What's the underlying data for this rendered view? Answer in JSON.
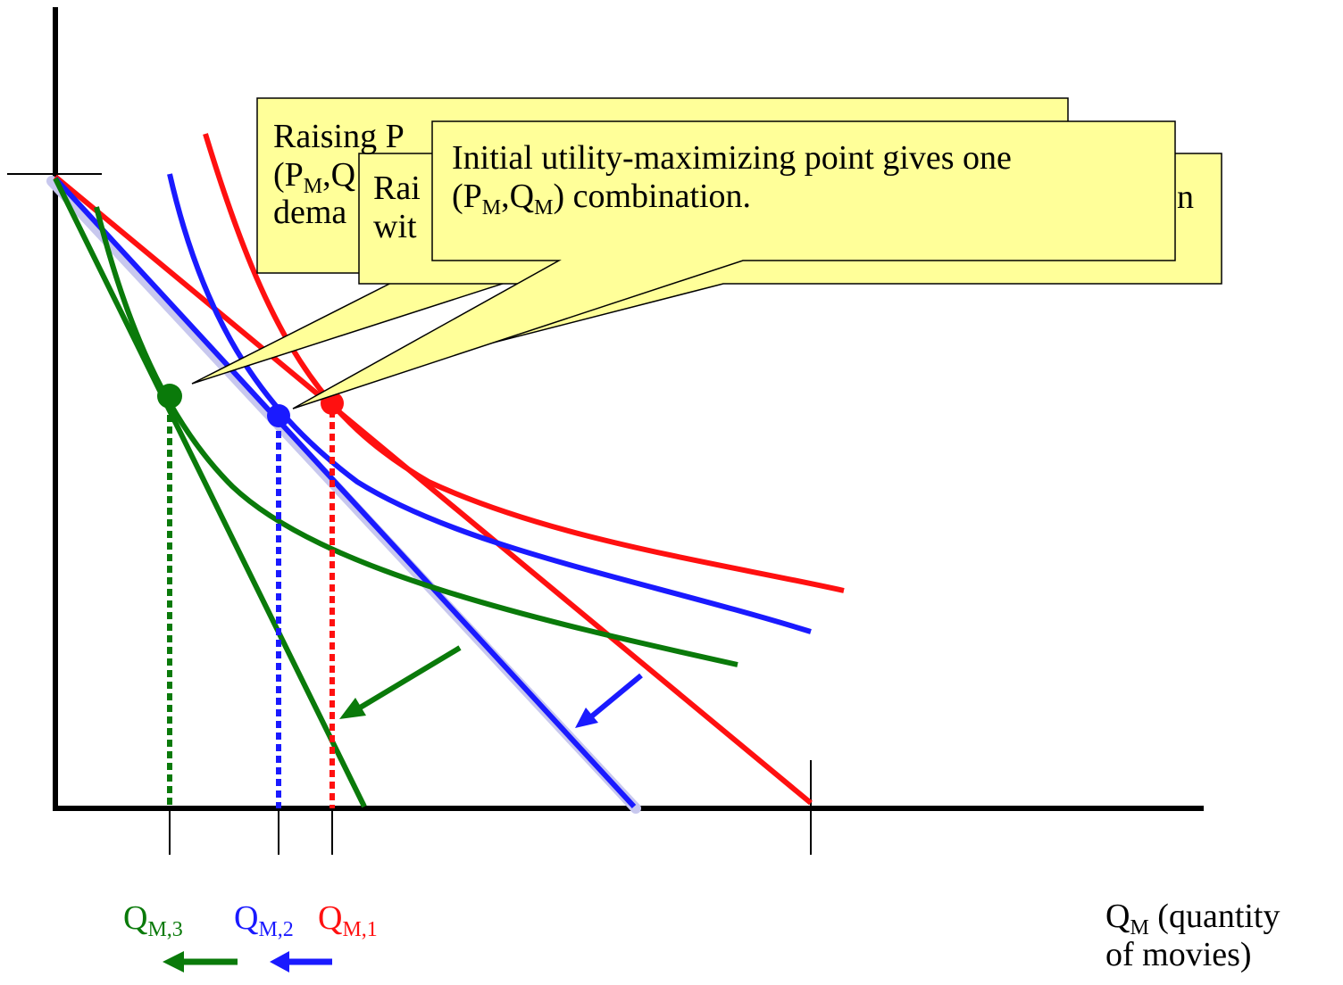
{
  "callouts": [
    {
      "line1": "Raising P",
      "line2_pre": "(P",
      "line2_sub": "M",
      "line2_post": ",Q",
      "line3": "dema"
    },
    {
      "line1": "Rai",
      "line1_tail": "n",
      "line2": "wit"
    },
    {
      "line1": "Initial utility-maximizing point gives one",
      "line2_p": "(P",
      "line2_sub1": "M",
      "line2_q": ",Q",
      "line2_sub2": "M",
      "line2_rest": ") combination."
    }
  ],
  "x_axis_label": {
    "main": "Q",
    "sub": "M",
    "rest": " (quantity",
    "line2": "of movies)"
  },
  "quantity_labels": [
    {
      "main": "Q",
      "sub": "M,3",
      "color": "#0a7a0a"
    },
    {
      "main": "Q",
      "sub": "M,2",
      "color": "#1a1aff"
    },
    {
      "main": "Q",
      "sub": "M,1",
      "color": "#ff1010"
    }
  ],
  "colors": {
    "red": "#ff1010",
    "blue": "#1a1aff",
    "green": "#0a7a0a",
    "callout_fill": "#ffff99"
  }
}
